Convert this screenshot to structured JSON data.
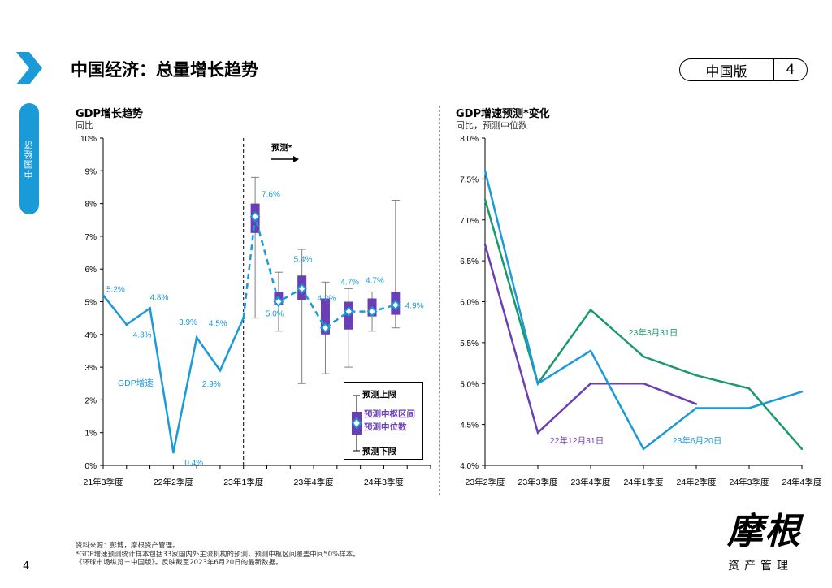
{
  "sidebar": {
    "section_label": "中国经济",
    "page_number": "4"
  },
  "header": {
    "title": "中国经济：总量增长趋势",
    "edition_label": "中国版",
    "page_number": "4"
  },
  "colors": {
    "accent": "#1a9ad6",
    "purple": "#6a3fb5",
    "green": "#1a9a6c",
    "gray": "#7f7f7f"
  },
  "chart_left": {
    "title": "GDP增长趋势",
    "subtitle": "同比",
    "forecast_arrow_label": "预测*",
    "series_label": "GDP增速",
    "legend": {
      "upper": "预测上限",
      "range": "预测中枢区间",
      "median": "预测中位数",
      "lower": "预测下限"
    }
  },
  "chart_right": {
    "title": "GDP增速预测*变化",
    "subtitle": "同比，预测中位数"
  },
  "chart_data": [
    {
      "type": "line",
      "title": "GDP增长趋势",
      "ylabel": "同比",
      "ylim": [
        0,
        10
      ],
      "yticks": [
        "0%",
        "1%",
        "2%",
        "3%",
        "4%",
        "5%",
        "6%",
        "7%",
        "8%",
        "9%",
        "10%"
      ],
      "xticks": [
        "21年3季度",
        "22年2季度",
        "23年1季度",
        "23年4季度",
        "24年3季度"
      ],
      "actual": {
        "name": "GDP增速",
        "quarters": [
          "21Q3",
          "21Q4",
          "22Q1",
          "22Q2",
          "22Q3",
          "22Q4",
          "23Q1"
        ],
        "values": [
          5.2,
          4.3,
          4.8,
          0.4,
          3.9,
          2.9,
          4.5
        ],
        "labels": [
          "5.2%",
          "4.3%",
          "4.8%",
          "0.4%",
          "3.9%",
          "2.9%",
          "4.5%"
        ]
      },
      "forecast": {
        "quarters": [
          "23Q2",
          "23Q3",
          "23Q4",
          "24Q1",
          "24Q2",
          "24Q3",
          "24Q4"
        ],
        "median": [
          7.6,
          5.0,
          5.4,
          4.2,
          4.7,
          4.7,
          4.9
        ],
        "median_labels": [
          "7.6%",
          "5.0%",
          "5.4%",
          "4.2%",
          "4.7%",
          "4.7%",
          "4.9%"
        ],
        "range_low": [
          7.1,
          4.9,
          5.05,
          4.0,
          4.15,
          4.55,
          4.6
        ],
        "range_high": [
          8.0,
          5.3,
          5.8,
          5.1,
          5.0,
          5.1,
          5.3
        ],
        "lower": [
          4.5,
          4.1,
          2.5,
          2.8,
          3.0,
          4.1,
          4.2
        ],
        "upper": [
          8.8,
          5.9,
          6.6,
          5.6,
          5.4,
          5.3,
          8.1
        ]
      }
    },
    {
      "type": "line",
      "title": "GDP增速预测*变化",
      "ylabel": "同比，预测中位数",
      "ylim": [
        4.0,
        8.0
      ],
      "yticks": [
        "4.0%",
        "4.5%",
        "5.0%",
        "5.5%",
        "6.0%",
        "6.5%",
        "7.0%",
        "7.5%",
        "8.0%"
      ],
      "categories": [
        "23年2季度",
        "23年3季度",
        "23年4季度",
        "24年1季度",
        "24年2季度",
        "24年3季度",
        "24年4季度"
      ],
      "series": [
        {
          "name": "22年12月31日",
          "color": "#6a3fb5",
          "values": [
            6.7,
            4.4,
            5.0,
            5.0,
            4.75,
            null,
            null
          ]
        },
        {
          "name": "23年3月31日",
          "color": "#1a9a6c",
          "values": [
            7.25,
            5.0,
            5.9,
            5.33,
            5.1,
            4.94,
            4.2
          ]
        },
        {
          "name": "23年6月20日",
          "color": "#1a9ad6",
          "values": [
            7.6,
            5.0,
            5.4,
            4.2,
            4.7,
            4.7,
            4.9
          ]
        }
      ]
    }
  ],
  "footer": {
    "source": "资料来源：彭博，摩根资产管理。",
    "note1": "*GDP增速预测统计样本包括33家国内外主流机构的预测，预测中枢区间覆盖中间50%样本。",
    "note2": "《环球市场纵览－中国版》。反映截至2023年6月20日的最新数据。",
    "logo_text": "摩根",
    "logo_sub": "资产管理"
  }
}
